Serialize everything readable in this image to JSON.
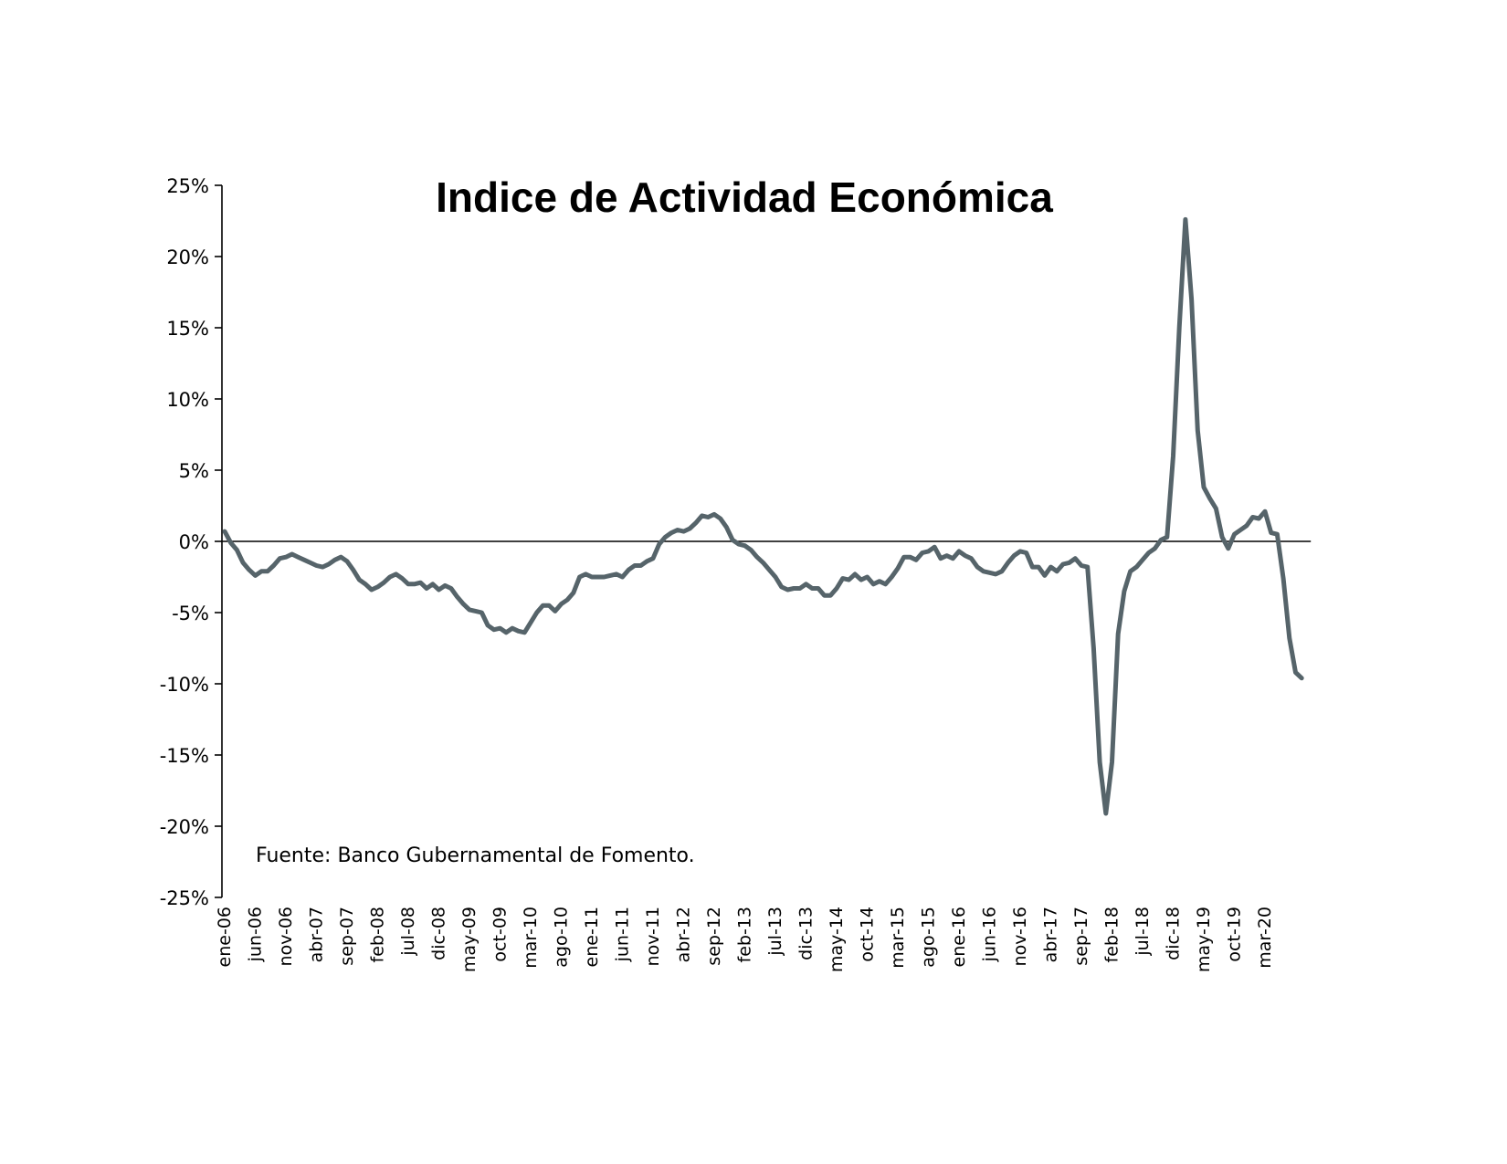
{
  "chart_data": {
    "type": "line",
    "title": "Indice de Actividad Económica",
    "source": "Fuente: Banco Gubernamental de Fomento.",
    "xlabel": "",
    "ylabel": "",
    "ylim": [
      -25,
      25
    ],
    "y_ticks": [
      25,
      20,
      15,
      10,
      5,
      0,
      -5,
      -10,
      -15,
      -20,
      -25
    ],
    "y_tick_labels": [
      "25%",
      "20%",
      "15%",
      "10%",
      "5%",
      "0%",
      "-5%",
      "-10%",
      "-15%",
      "-20%",
      "-25%"
    ],
    "x_tick_labels": [
      "ene-06",
      "jun-06",
      "nov-06",
      "abr-07",
      "sep-07",
      "feb-08",
      "jul-08",
      "dic-08",
      "may-09",
      "oct-09",
      "mar-10",
      "ago-10",
      "ene-11",
      "jun-11",
      "nov-11",
      "abr-12",
      "sep-12",
      "feb-13",
      "jul-13",
      "dic-13",
      "may-14",
      "oct-14",
      "mar-15",
      "ago-15",
      "ene-16",
      "jun-16",
      "nov-16",
      "abr-17",
      "sep-17",
      "feb-18",
      "jul-18",
      "dic-18",
      "may-19",
      "oct-19",
      "mar-20"
    ],
    "x_start": "ene-06",
    "x_end": "jul-20",
    "grid": false,
    "line_color": "#56646a",
    "series": [
      {
        "values": [
          0.7,
          -0.1,
          -0.6,
          -1.5,
          -2.0,
          -2.4,
          -2.1,
          -2.1,
          -1.7,
          -1.2,
          -1.1,
          -0.9,
          -1.1,
          -1.3,
          -1.5,
          -1.7,
          -1.8,
          -1.6,
          -1.3,
          -1.1,
          -1.4,
          -2.0,
          -2.7,
          -3.0,
          -3.4,
          -3.2,
          -2.9,
          -2.5,
          -2.3,
          -2.6,
          -3.0,
          -3.0,
          -2.9,
          -3.3,
          -3.0,
          -3.4,
          -3.1,
          -3.3,
          -3.9,
          -4.4,
          -4.8,
          -4.9,
          -5.0,
          -5.9,
          -6.2,
          -6.1,
          -6.4,
          -6.1,
          -6.3,
          -6.4,
          -5.7,
          -5.0,
          -4.5,
          -4.5,
          -4.9,
          -4.4,
          -4.1,
          -3.6,
          -2.5,
          -2.3,
          -2.5,
          -2.5,
          -2.5,
          -2.4,
          -2.3,
          -2.5,
          -2.0,
          -1.7,
          -1.7,
          -1.4,
          -1.2,
          -0.2,
          0.3,
          0.6,
          0.8,
          0.7,
          0.9,
          1.3,
          1.8,
          1.7,
          1.9,
          1.6,
          1.0,
          0.1,
          -0.2,
          -0.3,
          -0.6,
          -1.1,
          -1.5,
          -2.0,
          -2.5,
          -3.2,
          -3.4,
          -3.3,
          -3.3,
          -3.0,
          -3.3,
          -3.3,
          -3.8,
          -3.8,
          -3.3,
          -2.6,
          -2.7,
          -2.3,
          -2.7,
          -2.5,
          -3.0,
          -2.8,
          -3.0,
          -2.5,
          -1.9,
          -1.1,
          -1.1,
          -1.3,
          -0.8,
          -0.7,
          -0.4,
          -1.2,
          -1.0,
          -1.2,
          -0.7,
          -1.0,
          -1.2,
          -1.8,
          -2.1,
          -2.2,
          -2.3,
          -2.1,
          -1.5,
          -1.0,
          -0.7,
          -0.8,
          -1.8,
          -1.8,
          -2.4,
          -1.8,
          -2.1,
          -1.6,
          -1.5,
          -1.2,
          -1.7,
          -1.8,
          -7.5,
          -15.5,
          -19.1,
          -15.5,
          -6.5,
          -3.5,
          -2.1,
          -1.8,
          -1.3,
          -0.8,
          -0.5,
          0.1,
          0.3,
          6.0,
          15.0,
          22.6,
          17.0,
          7.8,
          3.8,
          3.0,
          2.3,
          0.3,
          -0.5,
          0.5,
          0.8,
          1.1,
          1.7,
          1.6,
          2.1,
          0.6,
          0.5,
          -2.6,
          -6.8,
          -9.2,
          -9.6
        ]
      }
    ]
  }
}
